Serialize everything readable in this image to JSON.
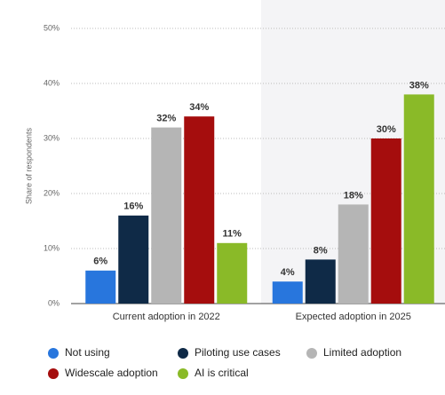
{
  "chart_data": {
    "type": "bar",
    "y_label": "Share of respondents",
    "categories": [
      "Current adoption in 2022",
      "Expected adoption in 2025"
    ],
    "series": [
      {
        "name": "Not using",
        "color": "#2876dd",
        "values": [
          6,
          4
        ],
        "value_labels": [
          "6%",
          "4%"
        ]
      },
      {
        "name": "Piloting use cases",
        "color": "#0f2a47",
        "values": [
          16,
          8
        ],
        "value_labels": [
          "16%",
          "8%"
        ]
      },
      {
        "name": "Limited adoption",
        "color": "#b5b5b5",
        "values": [
          32,
          18
        ],
        "value_labels": [
          "32%",
          "18%"
        ]
      },
      {
        "name": "Widescale adoption",
        "color": "#a50d0d",
        "values": [
          34,
          30
        ],
        "value_labels": [
          "34%",
          "30%"
        ]
      },
      {
        "name": "AI is critical",
        "color": "#8aba28",
        "values": [
          11,
          38
        ],
        "value_labels": [
          "11%",
          "38%"
        ]
      }
    ],
    "ylim": [
      0,
      50
    ],
    "yticks": [
      {
        "value": 0,
        "label": "0%"
      },
      {
        "value": 10,
        "label": "10%"
      },
      {
        "value": 20,
        "label": "20%"
      },
      {
        "value": 30,
        "label": "30%"
      },
      {
        "value": 40,
        "label": "40%"
      },
      {
        "value": 50,
        "label": "50%"
      }
    ],
    "grid": true
  }
}
